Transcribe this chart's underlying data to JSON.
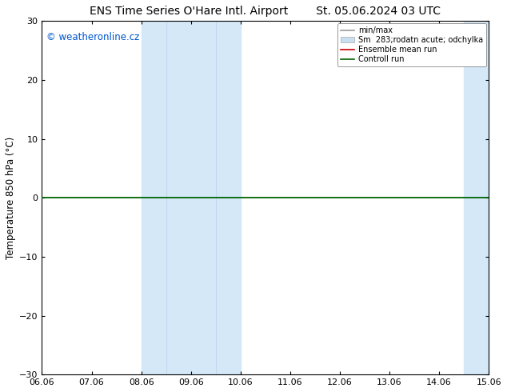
{
  "title": "ENS Time Series O'Hare Intl. Airport        St. 05.06.2024 03 UTC",
  "ylabel": "Temperature 850 hPa (°C)",
  "watermark": "© weatheronline.cz",
  "watermark_color": "#0055cc",
  "ylim": [
    -30,
    30
  ],
  "yticks": [
    -30,
    -20,
    -10,
    0,
    10,
    20,
    30
  ],
  "xlim": [
    0,
    9
  ],
  "xtick_labels": [
    "06.06",
    "07.06",
    "08.06",
    "09.06",
    "10.06",
    "11.06",
    "12.06",
    "13.06",
    "14.06",
    "15.06"
  ],
  "xtick_positions": [
    0,
    1,
    2,
    3,
    4,
    5,
    6,
    7,
    8,
    9
  ],
  "background_color": "#ffffff",
  "plot_bg_color": "#ffffff",
  "shaded_bands": [
    {
      "x_start": 2.0,
      "x_end": 4.0,
      "color": "#d4e8f8"
    },
    {
      "x_start": 8.5,
      "x_end": 9.0,
      "color": "#d4e8f8"
    }
  ],
  "inner_lines": [
    {
      "x": 2.5,
      "color": "#c0d8ef"
    },
    {
      "x": 3.5,
      "color": "#c0d8ef"
    },
    {
      "x": 9.0,
      "color": "#c0d8ef"
    }
  ],
  "control_run_y": 0.0,
  "control_run_color": "#006400",
  "ensemble_mean_color": "#cc0000",
  "minmax_color": "#999999",
  "spread_color": "#d0e8f8",
  "legend_labels": [
    "min/max",
    "Sm  283;rodatn acute; odchylka",
    "Ensemble mean run",
    "Controll run"
  ],
  "legend_colors": [
    "#999999",
    "#c8dff0",
    "#cc0000",
    "#006400"
  ],
  "title_fontsize": 10,
  "tick_label_fontsize": 8,
  "ylabel_fontsize": 8.5,
  "watermark_fontsize": 8.5
}
